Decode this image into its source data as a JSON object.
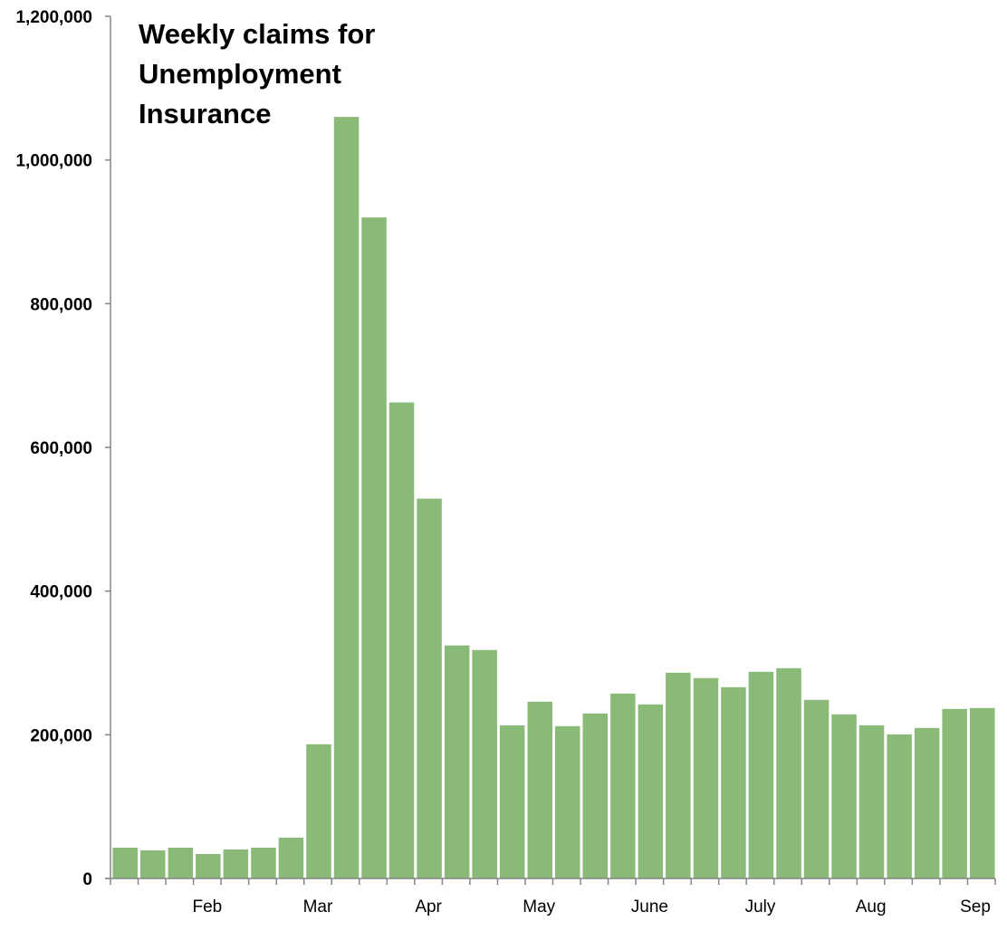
{
  "chart_data": {
    "type": "bar",
    "title": [
      "Weekly claims for",
      "Unemployment",
      "Insurance"
    ],
    "xlabel": "",
    "ylabel": "",
    "ylim": [
      0,
      1200000
    ],
    "yticks": [
      0,
      200000,
      400000,
      600000,
      800000,
      1000000,
      1200000
    ],
    "ytick_labels": [
      "0",
      "200,000",
      "400,000",
      "600,000",
      "800,000",
      "1,000,000",
      "1,200,000"
    ],
    "grid": false,
    "legend": null,
    "bar_color": "#8aba78",
    "month_labels": [
      {
        "label": "Feb",
        "after_bar": 3.5
      },
      {
        "label": "Mar",
        "after_bar": 7.5
      },
      {
        "label": "Apr",
        "after_bar": 11.5
      },
      {
        "label": "May",
        "after_bar": 15.5
      },
      {
        "label": "June",
        "after_bar": 19.5
      },
      {
        "label": "July",
        "after_bar": 23.5
      },
      {
        "label": "Aug",
        "after_bar": 27.5
      },
      {
        "label": "Sep",
        "after_bar": 31.5
      }
    ],
    "values": [
      42900,
      39100,
      42900,
      34000,
      40400,
      42900,
      56800,
      186800,
      1060000,
      920000,
      662500,
      528700,
      324300,
      318000,
      213200,
      246100,
      212000,
      229700,
      257400,
      242300,
      286400,
      278900,
      266200,
      287700,
      292700,
      248600,
      228400,
      213200,
      200600,
      209500,
      236000,
      237200
    ]
  }
}
